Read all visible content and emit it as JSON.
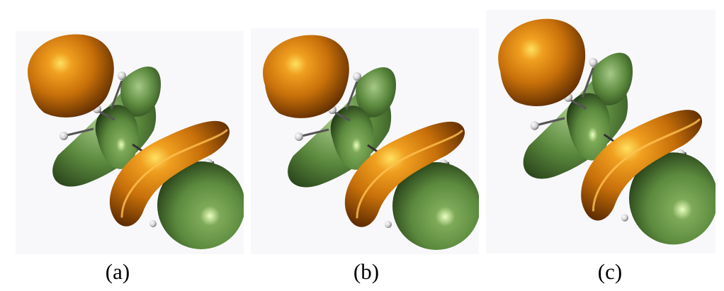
{
  "figure": {
    "panels": [
      {
        "caption": "(a)"
      },
      {
        "caption": "(b)"
      },
      {
        "caption": "(c)"
      }
    ],
    "colors": {
      "orange_lobe": "#c8700a",
      "orange_highlight": "#ffe060",
      "orange_shadow": "#5a2a00",
      "green_lobe": "#5c8a3e",
      "green_highlight": "#eaffc0",
      "green_shadow": "#1f3513",
      "bond": "#444444",
      "atom": "#e0e0e0",
      "background": "#f8f8fb"
    }
  }
}
